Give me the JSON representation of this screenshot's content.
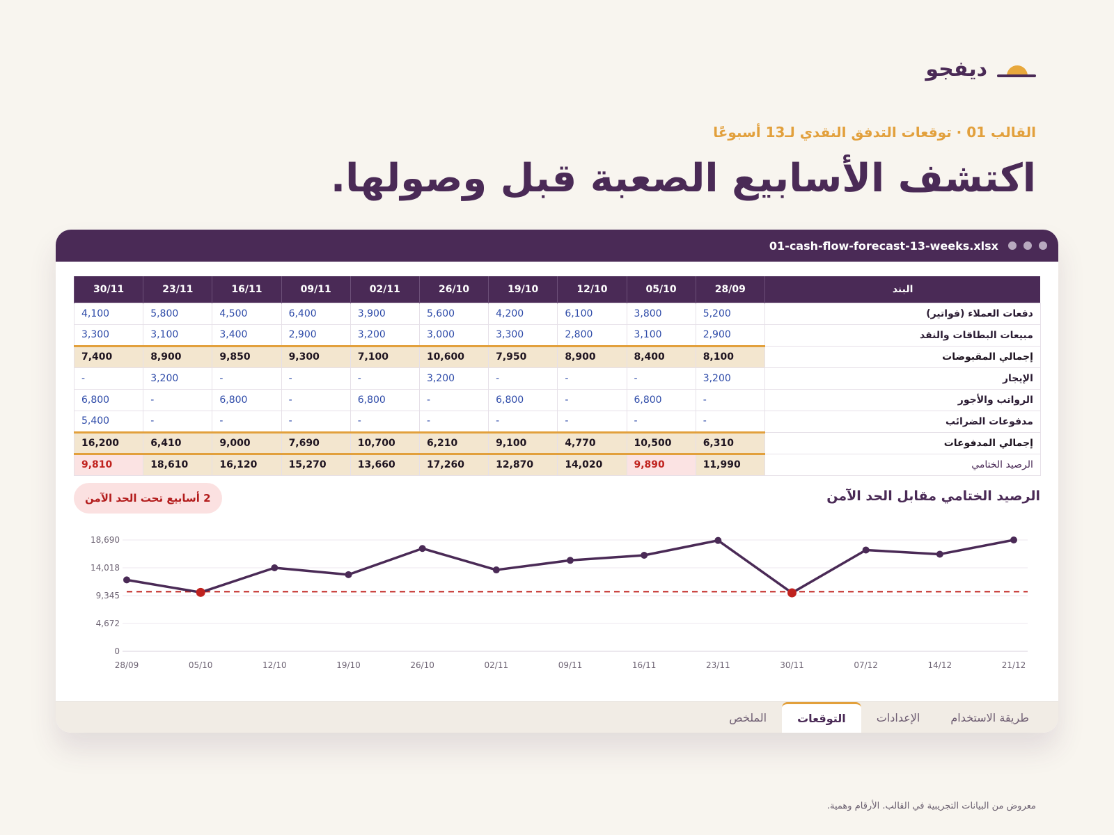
{
  "brand": {
    "name": "ديفجو"
  },
  "eyebrow": "القالب 01 · توقعات التدفق النقدي لـ13 أسبوعًا",
  "headline": "اكتشف الأسابيع الصعبة قبل وصولها.",
  "window": {
    "filename": "01-cash-flow-forecast-13-weeks.xlsx"
  },
  "sheet": {
    "label_header": "البند",
    "weeks": [
      "28/09",
      "05/10",
      "12/10",
      "19/10",
      "26/10",
      "02/11",
      "09/11",
      "16/11",
      "23/11",
      "30/11"
    ],
    "rows": [
      {
        "label": "دفعات العملاء (فواتير)",
        "type": "input",
        "values": [
          "5,200",
          "3,800",
          "6,100",
          "4,200",
          "5,600",
          "3,900",
          "6,400",
          "4,500",
          "5,800",
          "4,100"
        ]
      },
      {
        "label": "مبيعات البطاقات والنقد",
        "type": "input",
        "values": [
          "2,900",
          "3,100",
          "2,800",
          "3,300",
          "3,000",
          "3,200",
          "2,900",
          "3,400",
          "3,100",
          "3,300"
        ]
      },
      {
        "label": "إجمالي المقبوضات",
        "type": "total",
        "values": [
          "8,100",
          "8,400",
          "8,900",
          "7,950",
          "10,600",
          "7,100",
          "9,300",
          "9,850",
          "8,900",
          "7,400"
        ]
      },
      {
        "label": "الإيجار",
        "type": "input",
        "values": [
          "3,200",
          "-",
          "-",
          "-",
          "3,200",
          "-",
          "-",
          "-",
          "3,200",
          "-"
        ]
      },
      {
        "label": "الرواتب والأجور",
        "type": "input",
        "values": [
          "-",
          "6,800",
          "-",
          "6,800",
          "-",
          "6,800",
          "-",
          "6,800",
          "-",
          "6,800"
        ]
      },
      {
        "label": "مدفوعات الضرائب",
        "type": "input",
        "values": [
          "-",
          "-",
          "-",
          "-",
          "-",
          "-",
          "-",
          "-",
          "-",
          "5,400"
        ]
      },
      {
        "label": "إجمالي المدفوعات",
        "type": "total",
        "values": [
          "6,310",
          "10,500",
          "4,770",
          "9,100",
          "6,210",
          "10,700",
          "7,690",
          "9,000",
          "6,410",
          "16,200"
        ]
      },
      {
        "label": "الرصيد الختامي",
        "type": "closing",
        "values": [
          "11,990",
          "9,890",
          "14,020",
          "12,870",
          "17,260",
          "13,660",
          "15,270",
          "16,120",
          "18,610",
          "9,810"
        ],
        "low_flags": [
          false,
          true,
          false,
          false,
          false,
          false,
          false,
          false,
          false,
          true
        ]
      }
    ]
  },
  "chart": {
    "title": "الرصيد الختامي مقابل الحد الآمن",
    "warning_badge": "2 أسابيع تحت الحد الآمن"
  },
  "chart_data": {
    "type": "line",
    "x": [
      "28/09",
      "05/10",
      "12/10",
      "19/10",
      "26/10",
      "02/11",
      "09/11",
      "16/11",
      "23/11",
      "30/11",
      "07/12",
      "14/12",
      "21/12"
    ],
    "series": [
      {
        "values": [
          11990,
          9890,
          14020,
          12870,
          17260,
          13660,
          15270,
          16120,
          18610,
          9810,
          17000,
          16300,
          18690
        ]
      }
    ],
    "threshold": 10000,
    "ylim": [
      0,
      18690
    ],
    "yticks": [
      "0",
      "4,672",
      "9,345",
      "14,018",
      "18,690"
    ],
    "below_threshold_points": [
      "05/10",
      "30/11"
    ],
    "colors": {
      "line": "#4a2a56",
      "threshold": "#c0221e",
      "below": "#c0221e",
      "grid": "#ece7ef"
    }
  },
  "tabs": [
    {
      "label": "طريقة الاستخدام",
      "active": false
    },
    {
      "label": "الإعدادات",
      "active": false
    },
    {
      "label": "التوقعات",
      "active": true
    },
    {
      "label": "الملخص",
      "active": false
    }
  ],
  "footnote": "معروض من البيانات التجريبية في القالب. الأرقام وهمية."
}
